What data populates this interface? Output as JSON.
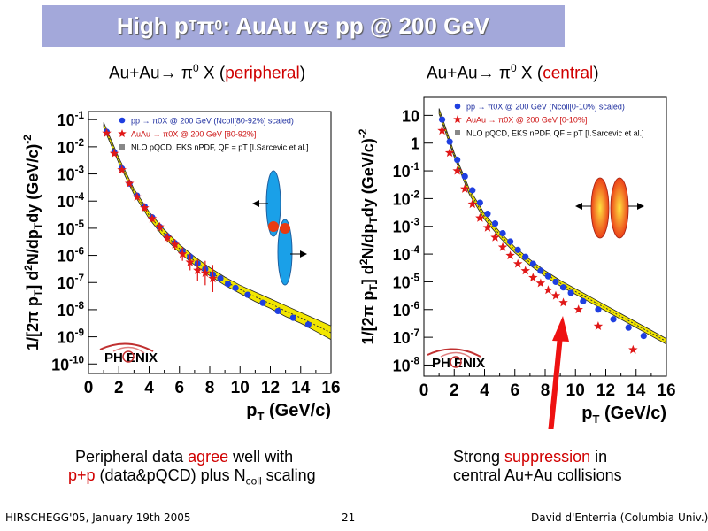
{
  "slide": {
    "title_main": "High p",
    "title_sub": "T",
    "title_pi": " π",
    "title_sup": "0",
    "title_rest": ": AuAu ",
    "title_vs": "vs",
    "title_end": " pp @ 200 GeV"
  },
  "panels": [
    {
      "heading_prefix": "Au+Au→ π",
      "heading_sup": "0",
      "heading_x": " X (",
      "heading_highlight": "peripheral",
      "heading_close": ")",
      "caption_line1_a": "Peripheral data ",
      "caption_line1_hl": "agree",
      "caption_line1_b": " well with",
      "caption_line2_hl": "p+p",
      "caption_line2_a": " (data&pQCD) plus N",
      "caption_line2_sub": "coll",
      "caption_line2_b": " scaling"
    },
    {
      "heading_prefix": "Au+Au→ π",
      "heading_sup": "0",
      "heading_x": " X (",
      "heading_highlight": "central",
      "heading_close": ")",
      "caption_line1_a": "Strong ",
      "caption_line1_hl": "suppression",
      "caption_line1_b": " in",
      "caption_line2_a": "central Au+Au collisions"
    }
  ],
  "footer": {
    "left": "HIRSCHEGG'05, January 19th 2005",
    "center": "21",
    "right": "David d'Enterria (Columbia Univ.)"
  },
  "logo_text": "PH  ENIX",
  "colors": {
    "title_bar": "#a3a8da",
    "highlight": "#d00000",
    "pp_marker": "#1f3fe0",
    "auau_marker": "#e01818",
    "band": "#f2e600",
    "arrow": "#ee1111"
  },
  "chart_data": [
    {
      "type": "scatter",
      "title": "",
      "xlabel": "pT (GeV/c)",
      "ylabel": "1/[2π pT] d2N/dpTdy (GeV/c)-2",
      "xlim": [
        0,
        16
      ],
      "ylim_log10": [
        -10,
        -1
      ],
      "x_ticks": [
        "0",
        "2",
        "4",
        "6",
        "8",
        "10",
        "12",
        "14",
        "16"
      ],
      "y_ticks": [
        "10-1",
        "10-2",
        "10-3",
        "10-4",
        "10-5",
        "10-6",
        "10-7",
        "10-8",
        "10-9",
        "10-10"
      ],
      "legend": [
        {
          "label": "pp → π0X @ 200 GeV (Ncoll[80-92%] scaled)",
          "marker": "circle",
          "color": "#1f3fe0"
        },
        {
          "label": "AuAu → π0X @ 200 GeV [80-92%]",
          "marker": "star",
          "color": "#e01818"
        },
        {
          "label": "NLO pQCD, EKS nPDF, QF = pT [I.Sarcevic et al.]",
          "marker": "square",
          "color": "#888888"
        }
      ],
      "series": [
        {
          "name": "pp → π0X @ 200 GeV (Ncoll[80-92%] scaled)",
          "x": [
            1.2,
            1.7,
            2.2,
            2.7,
            3.2,
            3.7,
            4.2,
            4.7,
            5.2,
            5.7,
            6.2,
            6.7,
            7.2,
            7.7,
            8.2,
            8.7,
            9.2,
            9.7,
            10.5,
            11.5,
            12.5,
            13.5,
            14.5
          ],
          "log10y": [
            -1.45,
            -2.2,
            -2.8,
            -3.35,
            -3.8,
            -4.2,
            -4.6,
            -4.95,
            -5.3,
            -5.55,
            -5.85,
            -6.05,
            -6.3,
            -6.5,
            -6.7,
            -6.85,
            -7.05,
            -7.2,
            -7.45,
            -7.75,
            -8.05,
            -8.3,
            -8.55
          ]
        },
        {
          "name": "AuAu → π0X @ 200 GeV [80-92%]",
          "x": [
            1.2,
            1.7,
            2.2,
            2.7,
            3.2,
            3.7,
            4.2,
            4.7,
            5.2,
            5.7,
            6.2,
            6.7,
            7.2,
            7.7,
            8.2
          ],
          "log10y": [
            -1.5,
            -2.25,
            -2.85,
            -3.35,
            -3.85,
            -4.25,
            -4.65,
            -4.95,
            -5.35,
            -5.6,
            -5.95,
            -6.25,
            -6.55,
            -6.65,
            -6.85
          ],
          "errors_log10": [
            0.05,
            0.05,
            0.05,
            0.05,
            0.08,
            0.1,
            0.12,
            0.15,
            0.18,
            0.2,
            0.25,
            0.3,
            0.4,
            0.45,
            0.5
          ]
        },
        {
          "name": "NLO pQCD, EKS nPDF, QF = pT [I.Sarcevic et al.]",
          "type": "band",
          "x": [
            1,
            2,
            3,
            4,
            5,
            6,
            7,
            8,
            9,
            10,
            11,
            12,
            13,
            14,
            15,
            16
          ],
          "log10y_low": [
            -1.3,
            -2.6,
            -3.75,
            -4.65,
            -5.35,
            -5.9,
            -6.35,
            -6.75,
            -7.1,
            -7.4,
            -7.7,
            -7.95,
            -8.25,
            -8.5,
            -8.8,
            -9.1
          ],
          "log10y_high": [
            -1.1,
            -2.4,
            -3.55,
            -4.4,
            -5.05,
            -5.6,
            -6.05,
            -6.45,
            -6.8,
            -7.1,
            -7.35,
            -7.6,
            -7.85,
            -8.1,
            -8.35,
            -8.6
          ]
        }
      ]
    },
    {
      "type": "scatter",
      "title": "",
      "xlabel": "pT (GeV/c)",
      "ylabel": "1/[2π pT] d2N/dpTdy (GeV/c)-2",
      "xlim": [
        0,
        16
      ],
      "ylim_log10": [
        -8.3,
        1.5
      ],
      "x_ticks": [
        "0",
        "2",
        "4",
        "6",
        "8",
        "10",
        "12",
        "14",
        "16"
      ],
      "y_ticks": [
        "10",
        "1",
        "10-1",
        "10-2",
        "10-3",
        "10-4",
        "10-5",
        "10-6",
        "10-7",
        "10-8"
      ],
      "legend": [
        {
          "label": "pp → π0X @ 200 GeV (Ncoll[0-10%] scaled)",
          "marker": "circle",
          "color": "#1f3fe0"
        },
        {
          "label": "AuAu → π0X @ 200 GeV [0-10%]",
          "marker": "star",
          "color": "#e01818"
        },
        {
          "label": "NLO pQCD, EKS nPDF, QF = pT [I.Sarcevic et al.]",
          "marker": "square",
          "color": "#888888"
        }
      ],
      "series": [
        {
          "name": "pp → π0X @ 200 GeV (Ncoll[0-10%] scaled)",
          "x": [
            1.2,
            1.7,
            2.2,
            2.7,
            3.2,
            3.7,
            4.2,
            4.7,
            5.2,
            5.7,
            6.2,
            6.7,
            7.2,
            7.7,
            8.2,
            8.7,
            9.2,
            9.7,
            10.5,
            11.5,
            12.5,
            13.5,
            14.5
          ],
          "log10y": [
            0.85,
            0.05,
            -0.6,
            -1.2,
            -1.7,
            -2.15,
            -2.55,
            -2.9,
            -3.25,
            -3.55,
            -3.85,
            -4.1,
            -4.35,
            -4.6,
            -4.8,
            -5.0,
            -5.2,
            -5.4,
            -5.7,
            -6.0,
            -6.35,
            -6.65,
            -6.95
          ]
        },
        {
          "name": "AuAu → π0X @ 200 GeV [0-10%]",
          "x": [
            1.2,
            1.7,
            2.2,
            2.7,
            3.2,
            3.7,
            4.2,
            4.7,
            5.2,
            5.7,
            6.2,
            6.7,
            7.2,
            7.7,
            8.2,
            8.7,
            9.2,
            10.2,
            11.5,
            13.8
          ],
          "log10y": [
            0.45,
            -0.35,
            -1.0,
            -1.65,
            -2.2,
            -2.7,
            -3.05,
            -3.4,
            -3.75,
            -4.05,
            -4.35,
            -4.6,
            -4.85,
            -5.05,
            -5.3,
            -5.5,
            -5.75,
            -6.0,
            -6.6,
            -7.45
          ]
        },
        {
          "name": "NLO pQCD, EKS nPDF, QF = pT [I.Sarcevic et al.]",
          "type": "band",
          "x": [
            1,
            2,
            3,
            4,
            5,
            6,
            7,
            8,
            9,
            10,
            11,
            12,
            13,
            14,
            15,
            16
          ],
          "log10y_low": [
            1.05,
            -0.5,
            -1.85,
            -2.75,
            -3.4,
            -3.95,
            -4.4,
            -4.8,
            -5.15,
            -5.45,
            -5.75,
            -6.05,
            -6.35,
            -6.65,
            -6.95,
            -7.25
          ],
          "log10y_high": [
            1.25,
            -0.35,
            -1.65,
            -2.55,
            -3.2,
            -3.75,
            -4.2,
            -4.6,
            -4.95,
            -5.25,
            -5.55,
            -5.85,
            -6.15,
            -6.45,
            -6.75,
            -7.05
          ]
        }
      ]
    }
  ]
}
